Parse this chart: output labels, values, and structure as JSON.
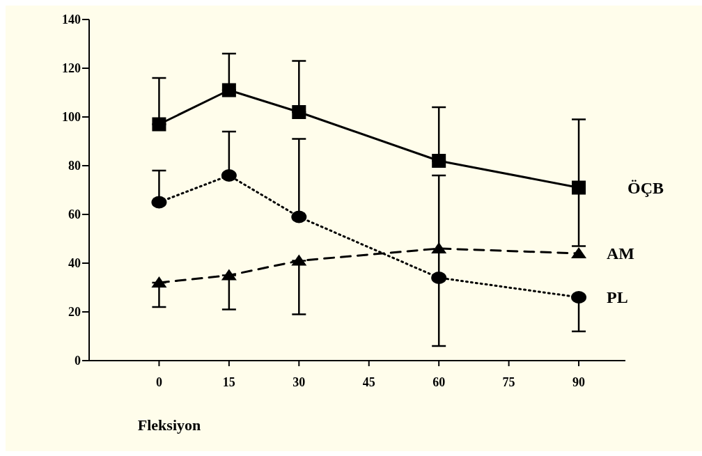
{
  "chart_data": {
    "type": "line",
    "xlabel": "Fleksiyon",
    "x": [
      0,
      15,
      30,
      60,
      90
    ],
    "series": [
      {
        "name": "ÖÇB",
        "color": "#000000",
        "values": [
          97,
          111,
          102,
          82,
          71
        ],
        "errors": [
          [
            97,
            116
          ],
          [
            111,
            126
          ],
          [
            102,
            123
          ],
          [
            82,
            104
          ],
          [
            47,
            99
          ]
        ],
        "marker": "square",
        "line_style": "solid"
      },
      {
        "name": "AM",
        "color": "#000000",
        "values": [
          32,
          35,
          41,
          46,
          44
        ],
        "errors": [
          [
            22,
            32
          ],
          [
            21,
            35
          ],
          [
            19,
            41
          ],
          null,
          null
        ],
        "marker": "triangle",
        "line_style": "dashed"
      },
      {
        "name": "PL",
        "color": "#000000",
        "values": [
          65,
          76,
          59,
          34,
          26
        ],
        "errors": [
          [
            65,
            78
          ],
          [
            76,
            94
          ],
          [
            59,
            91
          ],
          [
            6,
            76
          ],
          [
            12,
            26
          ]
        ],
        "marker": "circle",
        "line_style": "dotted"
      }
    ],
    "xlim": [
      -15,
      100
    ],
    "xticks": [
      0,
      15,
      30,
      45,
      60,
      75,
      90
    ],
    "ylim": [
      0,
      140
    ],
    "yticks": [
      0,
      20,
      40,
      60,
      80,
      100,
      120,
      140
    ],
    "legend": "right"
  }
}
